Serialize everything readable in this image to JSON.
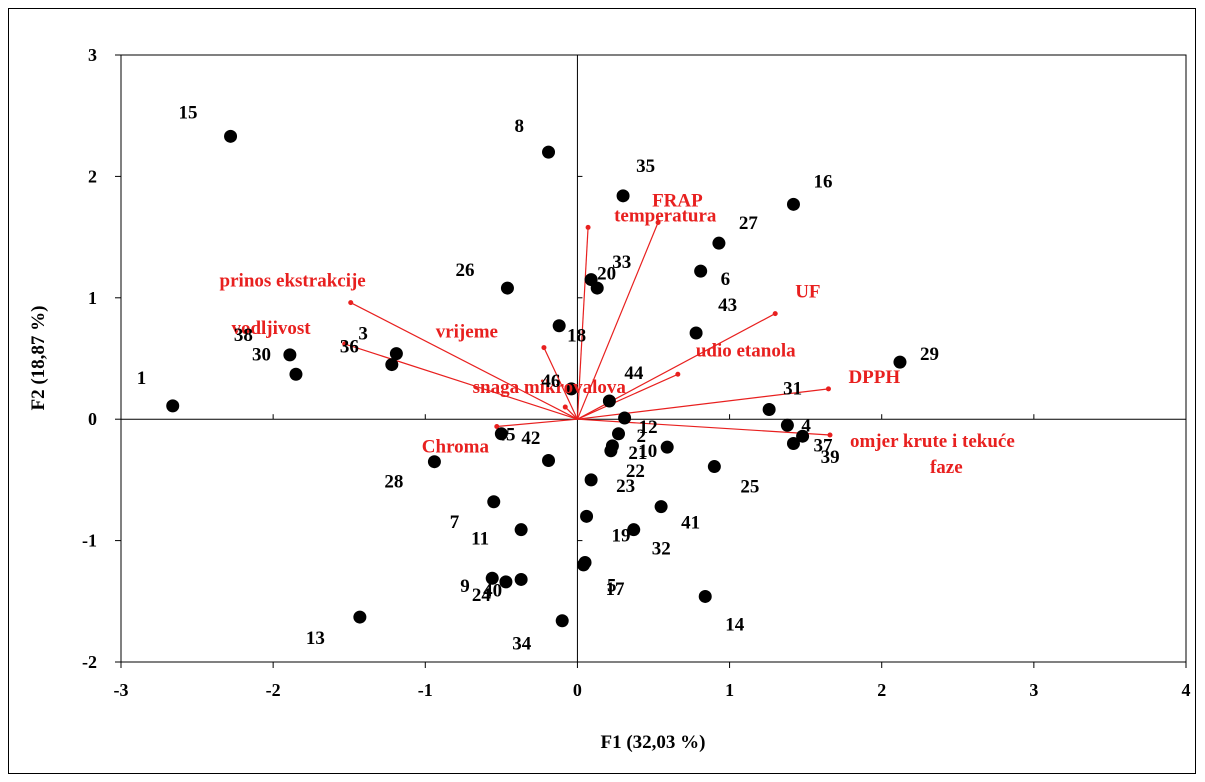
{
  "chart_data": {
    "type": "scatter",
    "xlabel": "F1 (32,03 %)",
    "ylabel": "F2 (18,87 %)",
    "xlim": [
      -3,
      4
    ],
    "ylim": [
      -2,
      3
    ],
    "xticks": [
      -3,
      -2,
      -1,
      0,
      1,
      2,
      3,
      4
    ],
    "yticks": [
      -2,
      -1,
      0,
      1,
      2,
      3
    ],
    "grid": false,
    "colors": {
      "points": "#000000",
      "vectors": "#e8201f"
    },
    "observations": [
      {
        "label": "1",
        "x": -2.66,
        "y": 0.11
      },
      {
        "label": "15",
        "x": -2.28,
        "y": 2.33
      },
      {
        "label": "38",
        "x": -1.89,
        "y": 0.53
      },
      {
        "label": "30",
        "x": -1.85,
        "y": 0.37
      },
      {
        "label": "36",
        "x": -1.22,
        "y": 0.45
      },
      {
        "label": "3",
        "x": -1.19,
        "y": 0.54
      },
      {
        "label": "13",
        "x": -1.43,
        "y": -1.63
      },
      {
        "label": "28",
        "x": -0.94,
        "y": -0.35
      },
      {
        "label": "42",
        "x": -0.5,
        "y": -0.12
      },
      {
        "label": "26",
        "x": -0.46,
        "y": 1.08
      },
      {
        "label": "18",
        "x": -0.12,
        "y": 0.77
      },
      {
        "label": "8",
        "x": -0.19,
        "y": 2.2
      },
      {
        "label": "46",
        "x": -0.04,
        "y": 0.25
      },
      {
        "label": "45",
        "x": -0.19,
        "y": -0.34
      },
      {
        "label": "7",
        "x": -0.55,
        "y": -0.68
      },
      {
        "label": "11",
        "x": -0.37,
        "y": -0.91
      },
      {
        "label": "9",
        "x": -0.56,
        "y": -1.31
      },
      {
        "label": "24",
        "x": -0.47,
        "y": -1.34
      },
      {
        "label": "40",
        "x": -0.37,
        "y": -1.32
      },
      {
        "label": "34",
        "x": -0.1,
        "y": -1.66
      },
      {
        "label": "35",
        "x": 0.3,
        "y": 1.84
      },
      {
        "label": "20",
        "x": 0.09,
        "y": 1.15
      },
      {
        "label": "33",
        "x": 0.13,
        "y": 1.08
      },
      {
        "label": "44",
        "x": 0.21,
        "y": 0.15
      },
      {
        "label": "12",
        "x": 0.31,
        "y": 0.01
      },
      {
        "label": "2",
        "x": 0.27,
        "y": -0.12
      },
      {
        "label": "21",
        "x": 0.23,
        "y": -0.22
      },
      {
        "label": "22",
        "x": 0.22,
        "y": -0.26
      },
      {
        "label": "23",
        "x": 0.09,
        "y": -0.5
      },
      {
        "label": "19",
        "x": 0.06,
        "y": -0.8
      },
      {
        "label": "5",
        "x": 0.05,
        "y": -1.18
      },
      {
        "label": "17",
        "x": 0.04,
        "y": -1.2
      },
      {
        "label": "32",
        "x": 0.37,
        "y": -0.91
      },
      {
        "label": "41",
        "x": 0.55,
        "y": -0.72
      },
      {
        "label": "10",
        "x": 0.59,
        "y": -0.23
      },
      {
        "label": "25",
        "x": 0.9,
        "y": -0.39
      },
      {
        "label": "14",
        "x": 0.84,
        "y": -1.46
      },
      {
        "label": "43",
        "x": 0.78,
        "y": 0.71
      },
      {
        "label": "6",
        "x": 0.81,
        "y": 1.22
      },
      {
        "label": "27",
        "x": 0.93,
        "y": 1.45
      },
      {
        "label": "16",
        "x": 1.42,
        "y": 1.77
      },
      {
        "label": "31",
        "x": 1.26,
        "y": 0.08
      },
      {
        "label": "4",
        "x": 1.38,
        "y": -0.05
      },
      {
        "label": "37",
        "x": 1.42,
        "y": -0.2
      },
      {
        "label": "39",
        "x": 1.48,
        "y": -0.14
      },
      {
        "label": "29",
        "x": 2.12,
        "y": 0.47
      }
    ],
    "variables": [
      {
        "label": "FRAP",
        "x": 0.53,
        "y": 1.62
      },
      {
        "label": "temperatura",
        "x": 0.07,
        "y": 1.58
      },
      {
        "label": "UF",
        "x": 1.3,
        "y": 0.87
      },
      {
        "label": "udio etanola",
        "x": 0.66,
        "y": 0.37
      },
      {
        "label": "DPPH",
        "x": 1.65,
        "y": 0.25
      },
      {
        "label": "omjer krute i tekuće faze",
        "x": 1.66,
        "y": -0.13
      },
      {
        "label": "prinos ekstrakcije",
        "x": -1.49,
        "y": 0.96
      },
      {
        "label": "vodljivost",
        "x": -1.53,
        "y": 0.62
      },
      {
        "label": "vrijeme",
        "x": -0.22,
        "y": 0.59
      },
      {
        "label": "snaga mikrovalova",
        "x": -0.08,
        "y": 0.1
      },
      {
        "label": "Chroma",
        "x": -0.53,
        "y": -0.06
      }
    ]
  }
}
